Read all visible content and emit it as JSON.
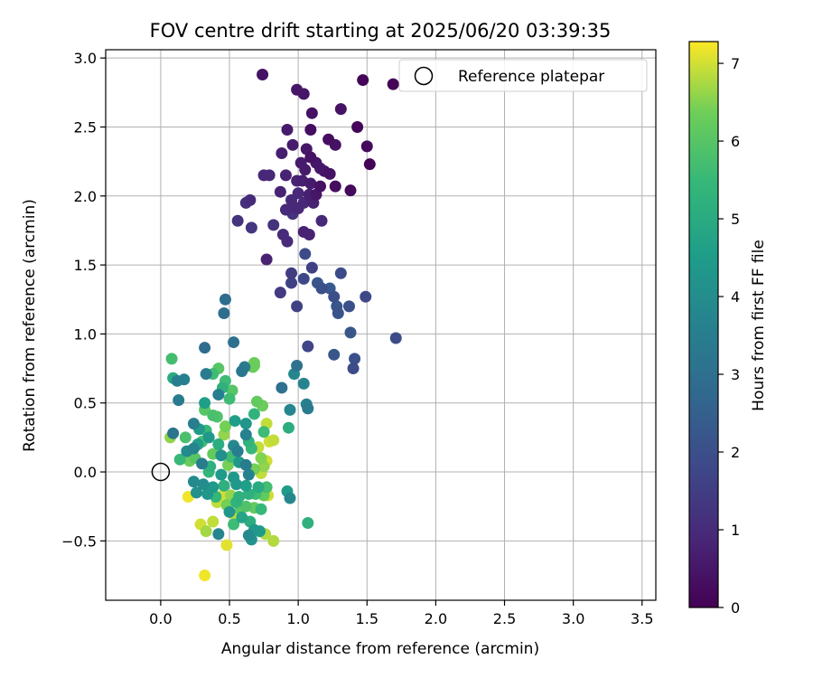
{
  "chart_data": {
    "type": "scatter",
    "title": "FOV centre drift starting at 2025/06/20 03:39:35",
    "xlabel": "Angular distance from reference (arcmin)",
    "ylabel": "Rotation from reference (arcmin)",
    "xlim": [
      -0.4,
      3.6
    ],
    "ylim": [
      -0.93,
      3.06
    ],
    "xticks": [
      0.0,
      0.5,
      1.0,
      1.5,
      2.0,
      2.5,
      3.0,
      3.5
    ],
    "xtick_labels": [
      "0.0",
      "0.5",
      "1.0",
      "1.5",
      "2.0",
      "2.5",
      "3.0",
      "3.5"
    ],
    "yticks": [
      -0.5,
      0.0,
      0.5,
      1.0,
      1.5,
      2.0,
      2.5,
      3.0
    ],
    "ytick_labels": [
      "−0.5",
      "0.0",
      "0.5",
      "1.0",
      "1.5",
      "2.0",
      "2.5",
      "3.0"
    ],
    "grid": true,
    "legend": {
      "position": "top-right",
      "entries": [
        "Reference platepar"
      ]
    },
    "reference_point": {
      "x": 0.0,
      "y": 0.0,
      "label": "Reference platepar"
    },
    "colorbar": {
      "label": "Hours from first FF file",
      "colormap": "viridis",
      "range": [
        0,
        7.28
      ],
      "ticks": [
        0,
        1,
        2,
        3,
        4,
        5,
        6,
        7
      ],
      "tick_labels": [
        "0",
        "1",
        "2",
        "3",
        "4",
        "5",
        "6",
        "7"
      ]
    },
    "points": [
      [
        0.74,
        2.88,
        0.4
      ],
      [
        0.99,
        2.77,
        0.5
      ],
      [
        1.04,
        2.74,
        0.5
      ],
      [
        1.47,
        2.84,
        0.1
      ],
      [
        1.69,
        2.81,
        0.05
      ],
      [
        1.31,
        2.63,
        0.4
      ],
      [
        1.1,
        2.6,
        0.4
      ],
      [
        0.92,
        2.48,
        0.6
      ],
      [
        1.09,
        2.48,
        0.3
      ],
      [
        1.43,
        2.5,
        0.1
      ],
      [
        0.96,
        2.37,
        0.6
      ],
      [
        1.22,
        2.41,
        0.3
      ],
      [
        1.27,
        2.37,
        0.4
      ],
      [
        1.5,
        2.36,
        0.2
      ],
      [
        0.88,
        2.31,
        0.7
      ],
      [
        1.06,
        2.34,
        0.5
      ],
      [
        1.09,
        2.28,
        0.4
      ],
      [
        1.13,
        2.24,
        0.5
      ],
      [
        1.02,
        2.24,
        0.6
      ],
      [
        1.16,
        2.2,
        0.6
      ],
      [
        1.52,
        2.23,
        0.1
      ],
      [
        0.75,
        2.15,
        0.9
      ],
      [
        0.79,
        2.15,
        0.9
      ],
      [
        0.91,
        2.15,
        0.8
      ],
      [
        1.05,
        2.19,
        0.6
      ],
      [
        1.19,
        2.18,
        0.5
      ],
      [
        1.23,
        2.16,
        0.4
      ],
      [
        0.99,
        2.11,
        0.8
      ],
      [
        1.03,
        2.11,
        0.7
      ],
      [
        1.09,
        2.09,
        0.6
      ],
      [
        1.16,
        2.07,
        0.4
      ],
      [
        1.27,
        2.07,
        0.3
      ],
      [
        1.38,
        2.04,
        0.2
      ],
      [
        0.87,
        2.03,
        0.8
      ],
      [
        1.0,
        2.02,
        0.9
      ],
      [
        1.08,
        2.01,
        0.7
      ],
      [
        1.13,
        2.01,
        0.5
      ],
      [
        0.62,
        1.95,
        1.1
      ],
      [
        0.65,
        1.97,
        1.0
      ],
      [
        0.95,
        1.97,
        1.0
      ],
      [
        1.04,
        1.95,
        0.9
      ],
      [
        1.11,
        1.95,
        0.8
      ],
      [
        0.91,
        1.9,
        1.0
      ],
      [
        0.97,
        1.92,
        0.9
      ],
      [
        1.0,
        1.91,
        0.9
      ],
      [
        0.96,
        1.87,
        1.2
      ],
      [
        0.56,
        1.82,
        1.2
      ],
      [
        0.66,
        1.77,
        1.3
      ],
      [
        0.82,
        1.79,
        1.2
      ],
      [
        1.17,
        1.82,
        0.9
      ],
      [
        0.89,
        1.72,
        1.0
      ],
      [
        0.92,
        1.67,
        1.0
      ],
      [
        1.04,
        1.74,
        0.8
      ],
      [
        1.08,
        1.72,
        0.8
      ],
      [
        0.77,
        1.54,
        0.8
      ],
      [
        1.05,
        1.58,
        1.9
      ],
      [
        0.95,
        1.44,
        1.5
      ],
      [
        1.04,
        1.4,
        1.8
      ],
      [
        1.1,
        1.48,
        1.6
      ],
      [
        1.31,
        1.44,
        1.9
      ],
      [
        0.95,
        1.37,
        1.6
      ],
      [
        1.14,
        1.37,
        2.2
      ],
      [
        1.17,
        1.33,
        2.0
      ],
      [
        0.87,
        1.3,
        1.4
      ],
      [
        1.23,
        1.33,
        2.3
      ],
      [
        1.26,
        1.27,
        2.0
      ],
      [
        1.49,
        1.27,
        1.8
      ],
      [
        1.28,
        1.2,
        2.2
      ],
      [
        1.37,
        1.2,
        2.0
      ],
      [
        1.29,
        1.15,
        2.1
      ],
      [
        0.47,
        1.25,
        2.9
      ],
      [
        0.46,
        1.15,
        2.9
      ],
      [
        0.99,
        1.2,
        1.6
      ],
      [
        1.38,
        1.01,
        2.2
      ],
      [
        1.71,
        0.97,
        1.9
      ],
      [
        0.32,
        0.9,
        2.9
      ],
      [
        0.53,
        0.94,
        3.0
      ],
      [
        1.07,
        0.91,
        1.7
      ],
      [
        1.26,
        0.85,
        2.2
      ],
      [
        1.41,
        0.82,
        2.0
      ],
      [
        1.4,
        0.75,
        1.9
      ],
      [
        0.99,
        0.77,
        3.1
      ],
      [
        0.59,
        0.73,
        3.3
      ],
      [
        0.61,
        0.76,
        3.4
      ],
      [
        0.12,
        0.66,
        3.5
      ],
      [
        0.17,
        0.67,
        3.6
      ],
      [
        0.33,
        0.71,
        3.4
      ],
      [
        0.38,
        0.71,
        5.6
      ],
      [
        0.42,
        0.75,
        6.0
      ],
      [
        0.68,
        0.79,
        6.3
      ],
      [
        0.67,
        0.76,
        6.3
      ],
      [
        0.68,
        0.77,
        6.3
      ],
      [
        0.08,
        0.82,
        5.7
      ],
      [
        0.09,
        0.68,
        5.0
      ],
      [
        0.97,
        0.71,
        3.8
      ],
      [
        1.04,
        0.64,
        3.7
      ],
      [
        0.88,
        0.61,
        3.0
      ],
      [
        0.45,
        0.61,
        5.2
      ],
      [
        0.47,
        0.66,
        5.6
      ],
      [
        0.52,
        0.59,
        6.0
      ],
      [
        0.13,
        0.52,
        3.4
      ],
      [
        0.32,
        0.5,
        4.6
      ],
      [
        0.42,
        0.56,
        3.5
      ],
      [
        0.5,
        0.53,
        5.6
      ],
      [
        0.7,
        0.51,
        6.2
      ],
      [
        0.74,
        0.48,
        6.3
      ],
      [
        0.94,
        0.45,
        3.8
      ],
      [
        1.06,
        0.49,
        3.6
      ],
      [
        1.07,
        0.46,
        3.4
      ],
      [
        0.32,
        0.45,
        6.0
      ],
      [
        0.38,
        0.41,
        5.8
      ],
      [
        0.41,
        0.4,
        5.9
      ],
      [
        0.54,
        0.37,
        4.6
      ],
      [
        0.62,
        0.35,
        4.3
      ],
      [
        0.68,
        0.42,
        5.3
      ],
      [
        0.24,
        0.35,
        3.5
      ],
      [
        0.28,
        0.31,
        4.4
      ],
      [
        0.33,
        0.3,
        5.5
      ],
      [
        0.47,
        0.33,
        6.4
      ],
      [
        0.77,
        0.35,
        6.9
      ],
      [
        0.93,
        0.32,
        5.1
      ],
      [
        0.09,
        0.28,
        3.2
      ],
      [
        0.18,
        0.25,
        5.8
      ],
      [
        0.35,
        0.25,
        4.4
      ],
      [
        0.46,
        0.27,
        6.6
      ],
      [
        0.62,
        0.27,
        3.6
      ],
      [
        0.75,
        0.29,
        5.6
      ],
      [
        0.07,
        0.25,
        6.6
      ],
      [
        0.27,
        0.2,
        4.6
      ],
      [
        0.3,
        0.22,
        5.7
      ],
      [
        0.42,
        0.2,
        5.1
      ],
      [
        0.53,
        0.19,
        3.9
      ],
      [
        0.64,
        0.22,
        5.3
      ],
      [
        0.71,
        0.18,
        6.9
      ],
      [
        0.79,
        0.22,
        7.0
      ],
      [
        0.82,
        0.23,
        6.9
      ],
      [
        0.19,
        0.15,
        3.9
      ],
      [
        0.24,
        0.17,
        3.7
      ],
      [
        0.38,
        0.13,
        6.2
      ],
      [
        0.44,
        0.12,
        4.1
      ],
      [
        0.51,
        0.11,
        5.6
      ],
      [
        0.56,
        0.15,
        3.5
      ],
      [
        0.66,
        0.17,
        5.5
      ],
      [
        0.73,
        0.1,
        6.5
      ],
      [
        0.77,
        0.08,
        7.0
      ],
      [
        0.14,
        0.09,
        5.5
      ],
      [
        0.21,
        0.08,
        6.3
      ],
      [
        0.25,
        0.1,
        6.0
      ],
      [
        0.3,
        0.06,
        3.4
      ],
      [
        0.36,
        0.04,
        5.2
      ],
      [
        0.49,
        0.05,
        6.4
      ],
      [
        0.57,
        0.07,
        4.4
      ],
      [
        0.62,
        0.05,
        3.4
      ],
      [
        0.68,
        0.02,
        6.4
      ],
      [
        0.75,
        0.04,
        6.6
      ],
      [
        0.73,
        -0.01,
        6.9
      ],
      [
        0.35,
        0.0,
        5.4
      ],
      [
        0.44,
        -0.02,
        4.5
      ],
      [
        0.53,
        -0.04,
        4.4
      ],
      [
        0.64,
        -0.02,
        3.6
      ],
      [
        0.24,
        -0.07,
        3.9
      ],
      [
        0.31,
        -0.09,
        4.0
      ],
      [
        0.38,
        -0.11,
        4.4
      ],
      [
        0.46,
        -0.1,
        5.2
      ],
      [
        0.55,
        -0.09,
        4.4
      ],
      [
        0.62,
        -0.1,
        4.6
      ],
      [
        0.71,
        -0.11,
        5.0
      ],
      [
        0.77,
        -0.11,
        5.7
      ],
      [
        0.2,
        -0.18,
        7.2
      ],
      [
        0.26,
        -0.15,
        4.1
      ],
      [
        0.34,
        -0.16,
        4.3
      ],
      [
        0.4,
        -0.18,
        5.4
      ],
      [
        0.45,
        -0.17,
        7.0
      ],
      [
        0.51,
        -0.17,
        6.6
      ],
      [
        0.57,
        -0.18,
        5.2
      ],
      [
        0.64,
        -0.16,
        5.2
      ],
      [
        0.69,
        -0.16,
        5.6
      ],
      [
        0.75,
        -0.17,
        6.2
      ],
      [
        0.78,
        -0.17,
        7.0
      ],
      [
        0.92,
        -0.14,
        4.5
      ],
      [
        0.94,
        -0.19,
        3.8
      ],
      [
        0.41,
        -0.22,
        6.9
      ],
      [
        0.48,
        -0.24,
        6.4
      ],
      [
        0.55,
        -0.22,
        5.3
      ],
      [
        0.62,
        -0.25,
        5.9
      ],
      [
        0.68,
        -0.26,
        6.2
      ],
      [
        0.73,
        -0.27,
        5.5
      ],
      [
        0.5,
        -0.29,
        4.3
      ],
      [
        0.54,
        -0.31,
        6.9
      ],
      [
        0.58,
        -0.27,
        6.1
      ],
      [
        0.29,
        -0.38,
        7.0
      ],
      [
        0.33,
        -0.43,
        6.7
      ],
      [
        0.38,
        -0.36,
        6.9
      ],
      [
        0.53,
        -0.38,
        5.6
      ],
      [
        0.59,
        -0.33,
        4.8
      ],
      [
        0.65,
        -0.36,
        5.1
      ],
      [
        0.68,
        -0.42,
        4.4
      ],
      [
        0.72,
        -0.43,
        4.5
      ],
      [
        0.76,
        -0.45,
        6.8
      ],
      [
        0.64,
        -0.46,
        3.9
      ],
      [
        0.42,
        -0.45,
        3.8
      ],
      [
        0.48,
        -0.53,
        7.1
      ],
      [
        0.66,
        -0.49,
        4.2
      ],
      [
        0.82,
        -0.5,
        6.8
      ],
      [
        1.07,
        -0.37,
        5.2
      ],
      [
        0.32,
        -0.75,
        7.2
      ]
    ]
  }
}
